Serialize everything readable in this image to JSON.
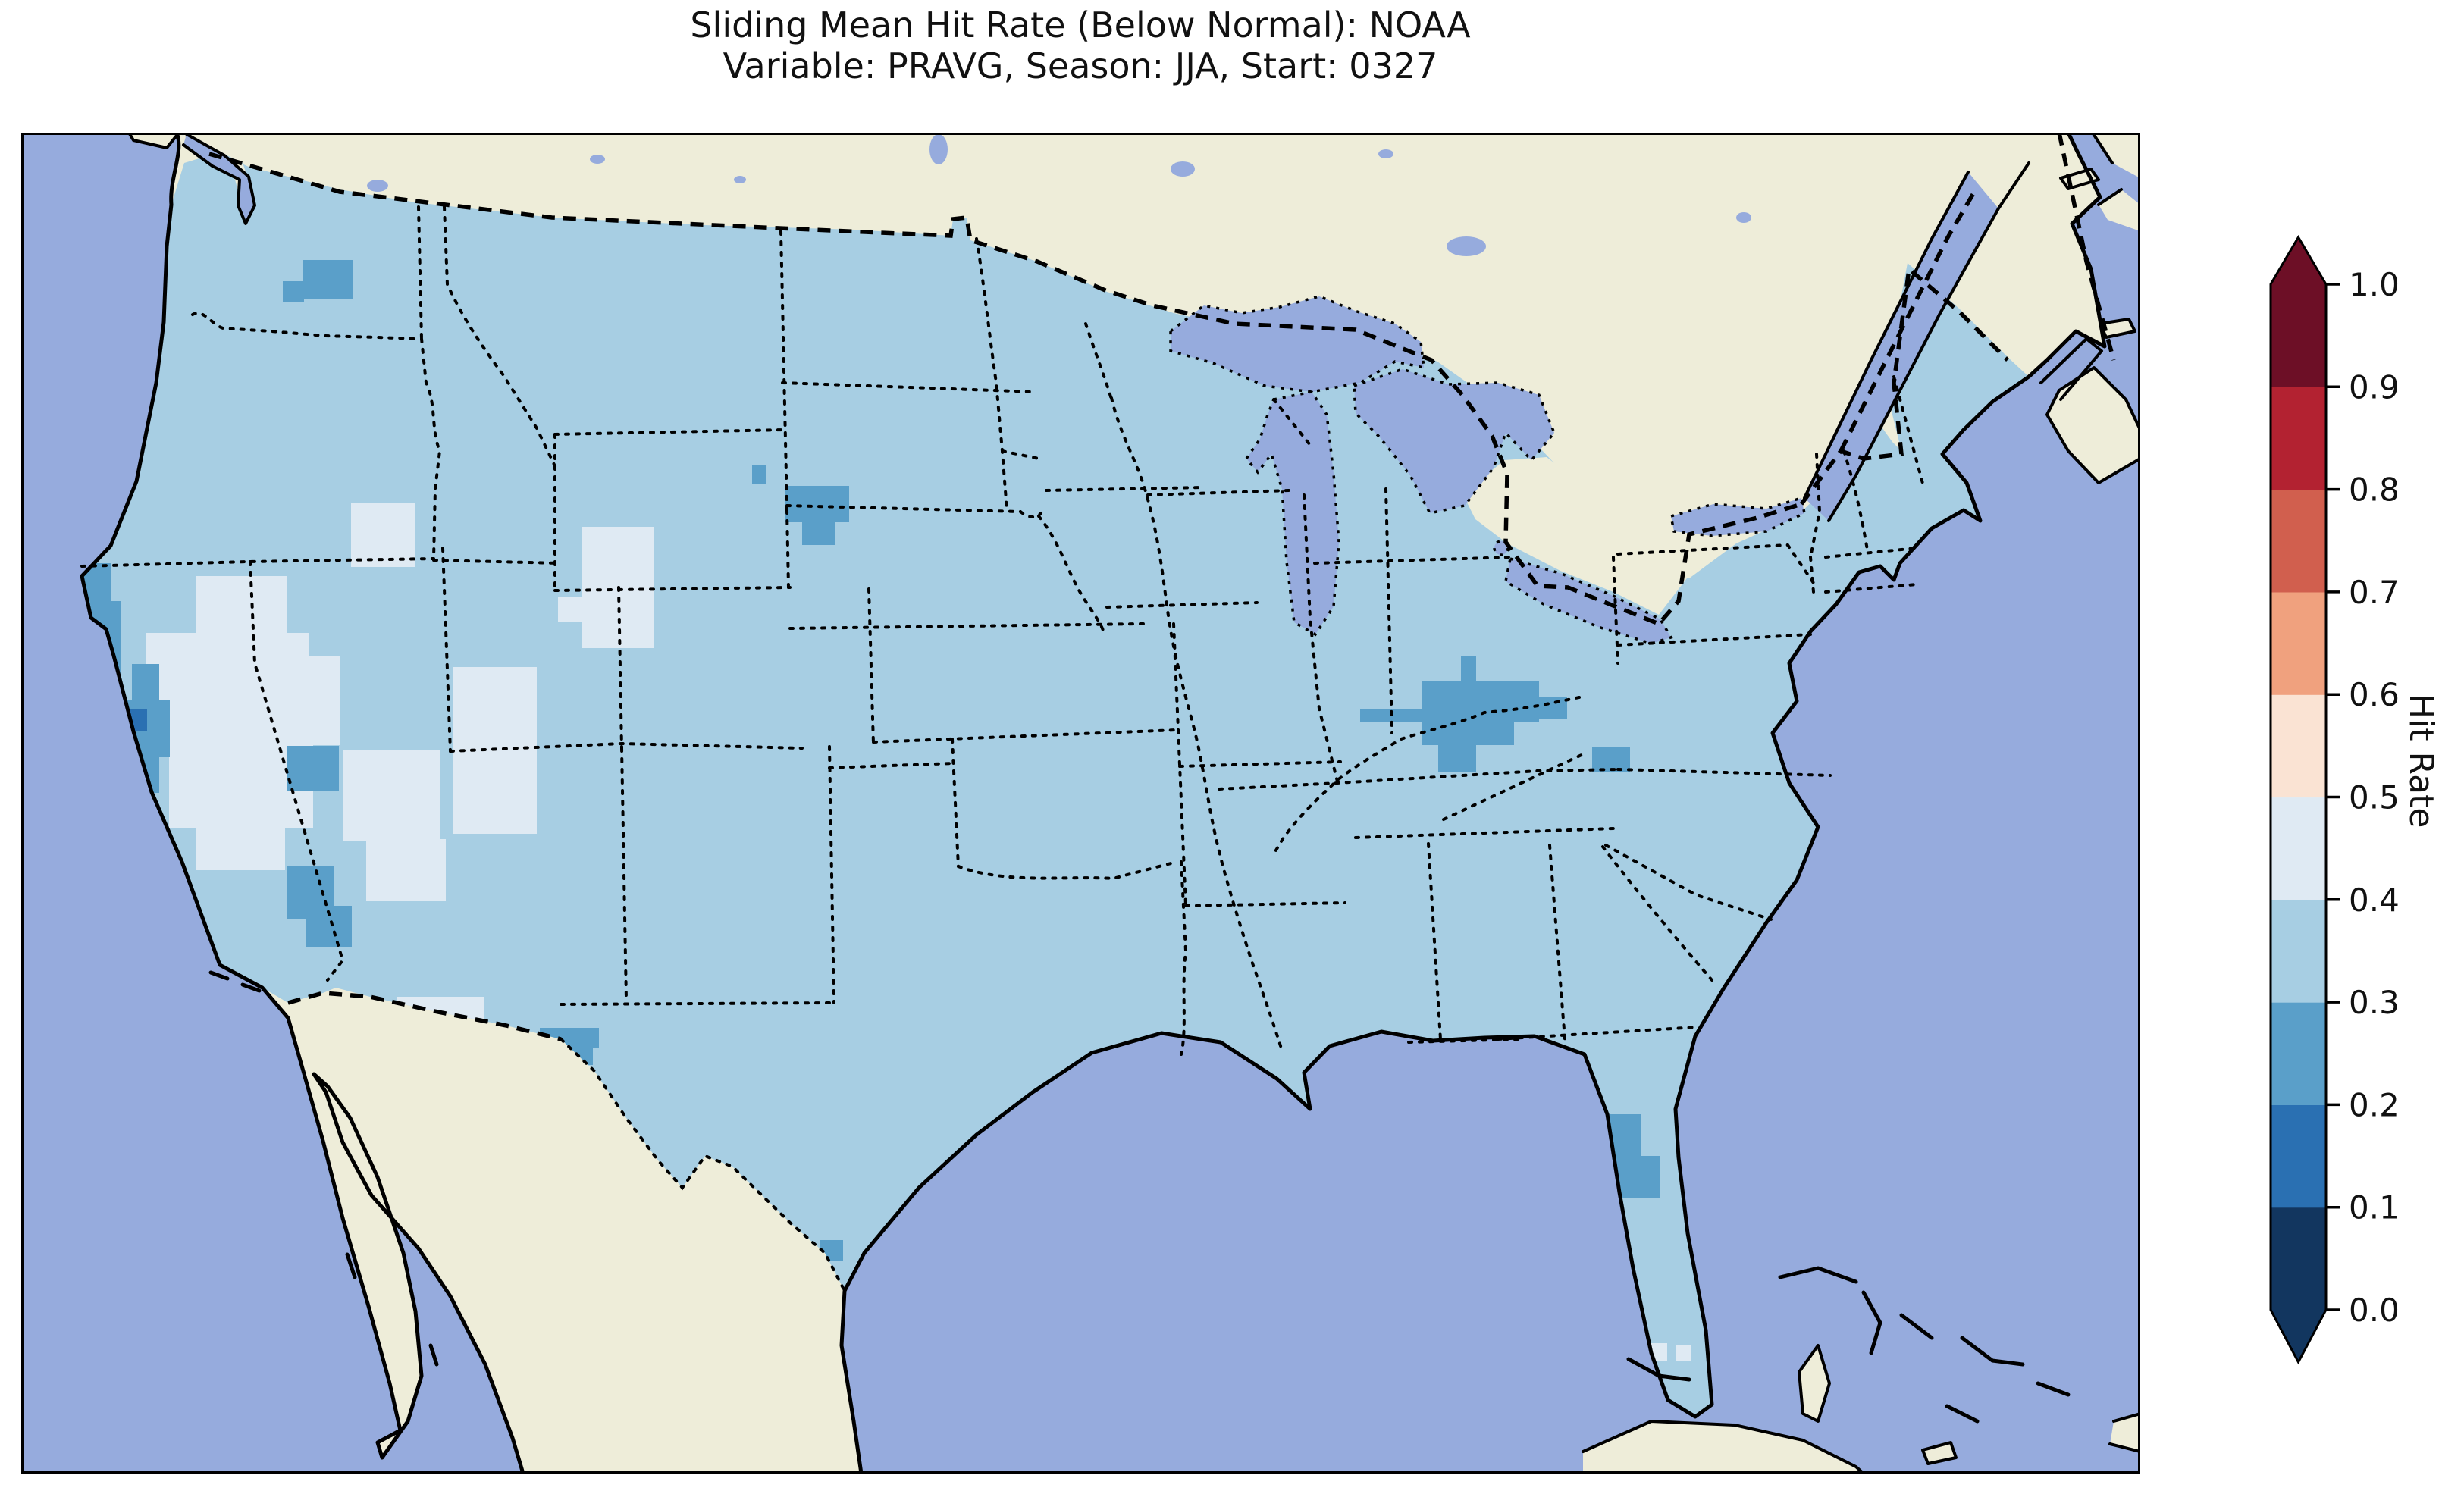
{
  "title": {
    "line1": "Sliding Mean Hit Rate (Below Normal): NOAA",
    "line2": "Variable: PRAVG, Season: JJA, Start: 0327"
  },
  "colorbar": {
    "label": "Hit Rate",
    "ticks_top_to_bottom": [
      "1.0",
      "0.9",
      "0.8",
      "0.7",
      "0.6",
      "0.5",
      "0.4",
      "0.3",
      "0.2",
      "0.1",
      "0.0"
    ],
    "segments_bottom_to_top": [
      {
        "range": "0.0-0.1",
        "color": "#12365f"
      },
      {
        "range": "0.1-0.2",
        "color": "#2a70b2"
      },
      {
        "range": "0.2-0.3",
        "color": "#5a9fc9"
      },
      {
        "range": "0.3-0.4",
        "color": "#a7cee3"
      },
      {
        "range": "0.4-0.5",
        "color": "#dfeaf3"
      },
      {
        "range": "0.5-0.6",
        "color": "#fae3d3"
      },
      {
        "range": "0.6-0.7",
        "color": "#f0a17e"
      },
      {
        "range": "0.7-0.8",
        "color": "#d15f4e"
      },
      {
        "range": "0.8-0.9",
        "color": "#b32231"
      },
      {
        "range": "0.9-1.0",
        "color": "#6d0f26"
      }
    ],
    "under_arrow_color": "#12365f",
    "over_arrow_color": "#6d0f26"
  },
  "map": {
    "colors": {
      "ocean": "#96abdd",
      "land": "#eeedd9",
      "base": "#a7cee3",
      "pale": "#dfeaf3",
      "dark": "#5a9fc9",
      "darkest": "#2a70b2",
      "border": "#000000"
    }
  },
  "chart_data": {
    "type": "heatmap",
    "title": "Sliding Mean Hit Rate (Below Normal): NOAA",
    "subtitle": "Variable: PRAVG, Season: JJA, Start: 0327",
    "source": "NOAA",
    "variable": "PRAVG",
    "season": "JJA",
    "start": "0327",
    "metric": "Hit Rate",
    "colorbar_range": [
      0.0,
      1.0
    ],
    "colorbar_tick_step": 0.1,
    "base_value_bin": "0.3-0.4",
    "regions": [
      {
        "region": "most of contiguous United States",
        "hit_rate_bin": "0.3-0.4"
      },
      {
        "region": "Great Basin (central Nevada - western Utah)",
        "hit_rate_bin": "0.4-0.5"
      },
      {
        "region": "northeastern Nevada / southern Idaho border",
        "hit_rate_bin": "0.4-0.5"
      },
      {
        "region": "southeastern Idaho",
        "hit_rate_bin": "0.4-0.5"
      },
      {
        "region": "southwestern Montana",
        "hit_rate_bin": "0.4-0.5"
      },
      {
        "region": "northeastern Arizona",
        "hit_rate_bin": "0.4-0.5"
      },
      {
        "region": "southwestern New Mexico border",
        "hit_rate_bin": "0.4-0.5"
      },
      {
        "region": "cells southwest of the Florida Keys",
        "hit_rate_bin": "0.4-0.5"
      },
      {
        "region": "northwestern California coast and northern Sierra",
        "hit_rate_bin": "0.2-0.3"
      },
      {
        "region": "single cell in central California",
        "hit_rate_bin": "0.1-0.2"
      },
      {
        "region": "eastern Washington",
        "hit_rate_bin": "0.2-0.3"
      },
      {
        "region": "southern Nevada",
        "hit_rate_bin": "0.2-0.3"
      },
      {
        "region": "southeastern Arizona",
        "hit_rate_bin": "0.2-0.3"
      },
      {
        "region": "south-central South Dakota / Nebraska border",
        "hit_rate_bin": "0.2-0.3"
      },
      {
        "region": "northeastern Minnesota cell west of Lake Superior",
        "hit_rate_bin": "0.2-0.3"
      },
      {
        "region": "Ohio Valley (southern Ohio, northern Kentucky, southeastern Indiana)",
        "hit_rate_bin": "0.2-0.3"
      },
      {
        "region": "western West Virginia cell",
        "hit_rate_bin": "0.2-0.3"
      },
      {
        "region": "east-central Florida coast",
        "hit_rate_bin": "0.2-0.3"
      },
      {
        "region": "west Texas near El Paso / Rio Grande",
        "hit_rate_bin": "0.2-0.3"
      },
      {
        "region": "southern Texas near lower Rio Grande",
        "hit_rate_bin": "0.2-0.3"
      }
    ],
    "patches": [
      {
        "color_key": "pale",
        "bin": "0.4-0.5",
        "rects": [
          [
            230,
            585,
            120,
            90
          ],
          [
            165,
            660,
            215,
            150
          ],
          [
            195,
            800,
            190,
            118
          ],
          [
            345,
            690,
            75,
            118
          ],
          [
            230,
            915,
            118,
            58
          ],
          [
            435,
            488,
            85,
            85
          ],
          [
            740,
            520,
            95,
            160
          ],
          [
            708,
            612,
            34,
            34
          ],
          [
            570,
            705,
            110,
            220
          ],
          [
            425,
            815,
            128,
            120
          ],
          [
            455,
            932,
            105,
            82
          ],
          [
            495,
            1140,
            115,
            82
          ],
          [
            2105,
            1595,
            30,
            25
          ],
          [
            2147,
            1597,
            24,
            23
          ],
          [
            2183,
            1600,
            20,
            20
          ]
        ]
      },
      {
        "color_key": "dark",
        "bin": "0.2-0.3",
        "rects": [
          [
            372,
            168,
            66,
            52
          ],
          [
            345,
            196,
            28,
            28
          ],
          [
            49,
            568,
            70,
            90
          ],
          [
            79,
            618,
            53,
            130
          ],
          [
            96,
            748,
            100,
            76
          ],
          [
            116,
            824,
            66,
            47
          ],
          [
            146,
            701,
            36,
            47
          ],
          [
            351,
            809,
            68,
            60
          ],
          [
            350,
            968,
            62,
            70
          ],
          [
            376,
            1020,
            60,
            55
          ],
          [
            1008,
            466,
            84,
            48
          ],
          [
            1030,
            514,
            44,
            30
          ],
          [
            964,
            438,
            18,
            26
          ],
          [
            1646,
            290,
            62,
            32
          ],
          [
            1899,
            691,
            20,
            33
          ],
          [
            1847,
            724,
            155,
            54
          ],
          [
            1766,
            761,
            81,
            17
          ],
          [
            1847,
            778,
            122,
            30
          ],
          [
            1869,
            808,
            50,
            36
          ],
          [
            1969,
            744,
            70,
            30
          ],
          [
            2072,
            810,
            50,
            34
          ],
          [
            2078,
            1295,
            58,
            68
          ],
          [
            2100,
            1350,
            62,
            55
          ],
          [
            684,
            1181,
            78,
            26
          ],
          [
            710,
            1200,
            44,
            30
          ],
          [
            1054,
            1461,
            30,
            28
          ]
        ]
      },
      {
        "color_key": "darkest",
        "bin": "0.1-0.2",
        "rects": [
          [
            129,
            761,
            37,
            28
          ]
        ]
      }
    ]
  }
}
